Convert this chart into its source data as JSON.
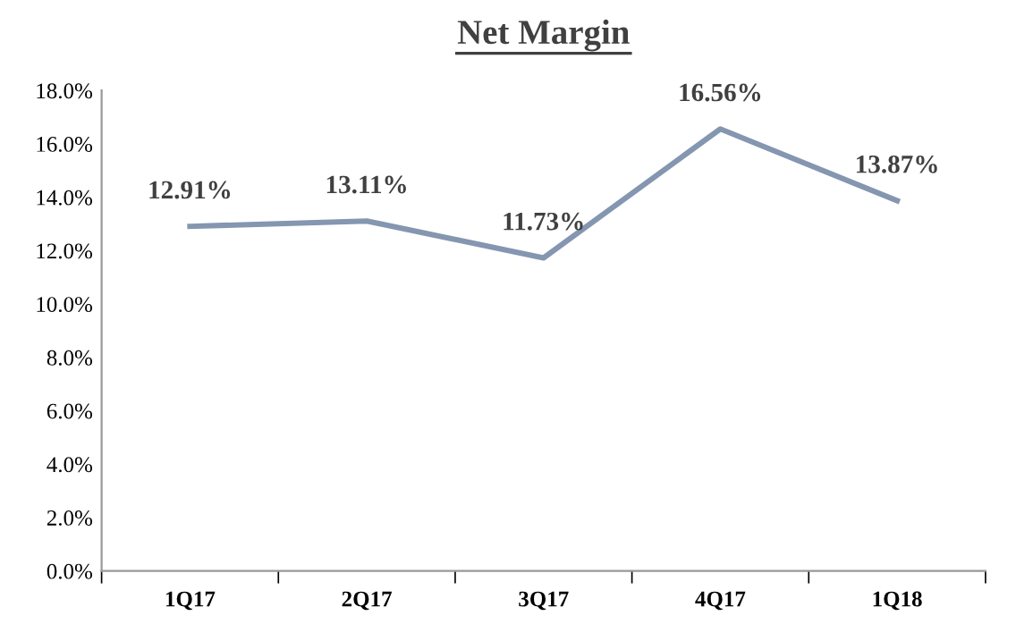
{
  "chart_data": {
    "type": "line",
    "title": "Net Margin",
    "categories": [
      "1Q17",
      "2Q17",
      "3Q17",
      "4Q17",
      "1Q18"
    ],
    "series": [
      {
        "color": "#8496b0",
        "values": [
          12.91,
          13.11,
          11.73,
          16.56,
          13.87
        ],
        "value_labels": [
          "12.91%",
          "13.11%",
          "11.73%",
          "16.56%",
          "13.87%"
        ]
      }
    ],
    "ylim": [
      0,
      18
    ],
    "yticks": [
      {
        "value": 0,
        "label": "0.0%"
      },
      {
        "value": 2,
        "label": "2.0%"
      },
      {
        "value": 4,
        "label": "4.0%"
      },
      {
        "value": 6,
        "label": "6.0%"
      },
      {
        "value": 8,
        "label": "8.0%"
      },
      {
        "value": 10,
        "label": "10.0%"
      },
      {
        "value": 12,
        "label": "12.0%"
      },
      {
        "value": 14,
        "label": "14.0%"
      },
      {
        "value": 16,
        "label": "16.0%"
      },
      {
        "value": 18,
        "label": "18.0%"
      }
    ],
    "grid": false,
    "legend": false,
    "marker": "none",
    "line_style": "solid"
  }
}
